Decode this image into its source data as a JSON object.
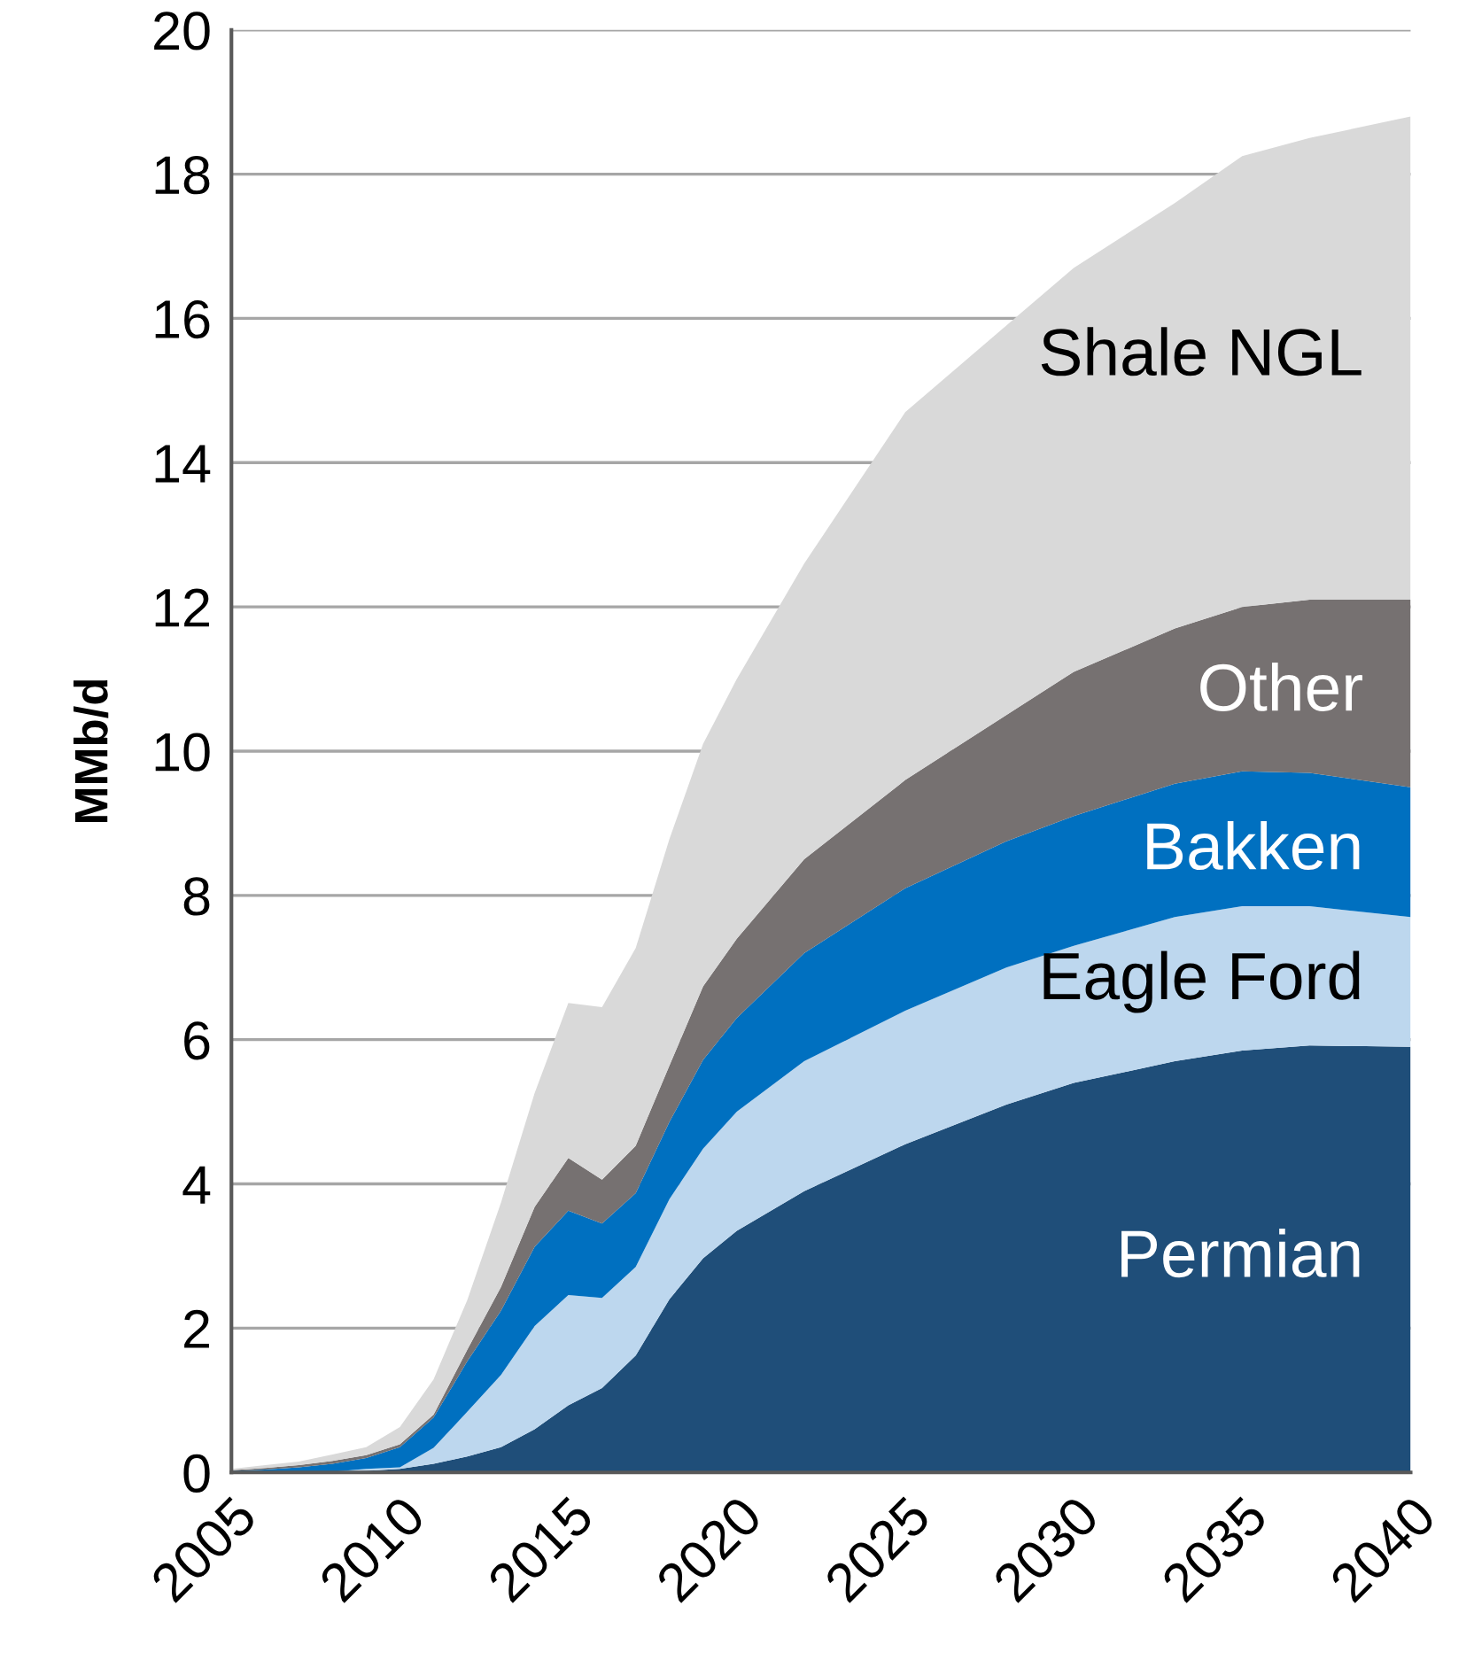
{
  "chart_data": {
    "type": "area",
    "stacked": true,
    "ylabel": "MMb/d",
    "x": [
      2005,
      2006,
      2007,
      2008,
      2009,
      2010,
      2011,
      2012,
      2013,
      2014,
      2015,
      2016,
      2017,
      2018,
      2019,
      2020,
      2022,
      2025,
      2028,
      2030,
      2033,
      2035,
      2037,
      2040
    ],
    "series": [
      {
        "name": "Permian",
        "color": "#1f4e79",
        "values": [
          0,
          0,
          0,
          0.01,
          0.02,
          0.05,
          0.12,
          0.22,
          0.35,
          0.6,
          0.93,
          1.17,
          1.62,
          2.4,
          2.97,
          3.35,
          3.9,
          4.55,
          5.1,
          5.4,
          5.7,
          5.85,
          5.92,
          5.9
        ]
      },
      {
        "name": "Eagle Ford",
        "color": "#bdd7ee",
        "values": [
          0,
          0,
          0,
          0,
          0.03,
          0.02,
          0.22,
          0.62,
          1.0,
          1.43,
          1.53,
          1.25,
          1.23,
          1.39,
          1.52,
          1.65,
          1.8,
          1.85,
          1.9,
          1.9,
          2.0,
          2.0,
          1.93,
          1.8
        ]
      },
      {
        "name": "Bakken",
        "color": "#0070c0",
        "values": [
          0.02,
          0.04,
          0.07,
          0.11,
          0.15,
          0.28,
          0.42,
          0.7,
          0.89,
          1.1,
          1.17,
          1.03,
          1.02,
          1.07,
          1.23,
          1.3,
          1.5,
          1.7,
          1.75,
          1.8,
          1.85,
          1.87,
          1.85,
          1.8
        ]
      },
      {
        "name": "Other",
        "color": "#767171",
        "values": [
          0.01,
          0.02,
          0.03,
          0.04,
          0.04,
          0.04,
          0.04,
          0.16,
          0.33,
          0.55,
          0.73,
          0.61,
          0.66,
          0.78,
          1.02,
          1.1,
          1.3,
          1.5,
          1.75,
          2.0,
          2.15,
          2.28,
          2.4,
          2.6
        ]
      },
      {
        "name": "Shale NGL",
        "color": "#d9d9d9",
        "values": [
          0.02,
          0.04,
          0.05,
          0.09,
          0.11,
          0.24,
          0.49,
          0.69,
          1.17,
          1.58,
          2.15,
          2.39,
          2.74,
          3.14,
          3.36,
          3.6,
          4.1,
          5.1,
          5.4,
          5.6,
          5.9,
          6.25,
          6.4,
          6.7
        ]
      }
    ],
    "xlim": [
      2005,
      2040
    ],
    "xticks": [
      2005,
      2010,
      2015,
      2020,
      2025,
      2030,
      2035,
      2040
    ],
    "ylim": [
      0,
      20
    ],
    "yticks": [
      0,
      2,
      4,
      6,
      8,
      10,
      12,
      14,
      16,
      18,
      20
    ],
    "grid": "y"
  }
}
